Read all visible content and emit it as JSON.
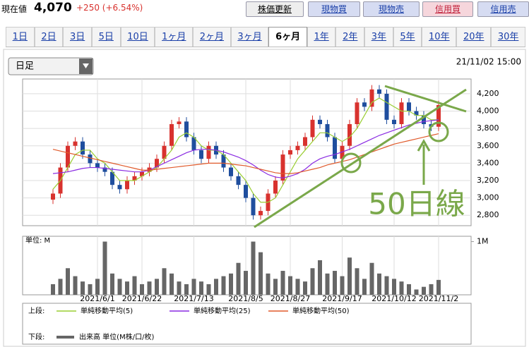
{
  "header": {
    "label": "現在値",
    "price": "4,070",
    "change": "+250 (+6.54%)",
    "buttons": [
      "株価更新",
      "現物買",
      "現物売",
      "信用買",
      "信用売"
    ]
  },
  "tabs": {
    "items": [
      "1日",
      "2日",
      "3日",
      "5日",
      "10日",
      "1ヶ月",
      "2ヶ月",
      "3ヶ月",
      "6ヶ月",
      "1年",
      "2年",
      "3年",
      "5年",
      "10年",
      "20年",
      "30年"
    ],
    "selected": "6ヶ月"
  },
  "chart_data": {
    "type": "candlestick",
    "period": "日足",
    "date": "21/11/02 15:00",
    "annotation": "50日線",
    "categories": [
      null,
      null,
      null,
      null,
      null,
      null,
      "2021/6/1",
      null,
      null,
      null,
      null,
      null,
      "2021/6/22",
      null,
      null,
      null,
      null,
      null,
      null,
      "2021/7/13",
      null,
      null,
      null,
      null,
      null,
      null,
      "2021/8/5",
      null,
      null,
      null,
      null,
      null,
      "2021/8/27",
      null,
      null,
      null,
      null,
      null,
      null,
      "2021/9/17",
      null,
      null,
      null,
      null,
      null,
      null,
      "2021/10/12",
      null,
      null,
      null,
      null,
      null,
      "2021/11/2"
    ],
    "open": [
      2980,
      3050,
      3350,
      3600,
      3650,
      3500,
      3400,
      3350,
      3300,
      3150,
      3100,
      3200,
      3250,
      3300,
      3350,
      3450,
      3600,
      3850,
      3880,
      3700,
      3550,
      3450,
      3600,
      3500,
      3350,
      3250,
      3150,
      3000,
      2800,
      2850,
      3050,
      3200,
      3500,
      3550,
      3600,
      3700,
      3900,
      3850,
      3700,
      3450,
      3600,
      3850,
      4100,
      4050,
      4250,
      4200,
      3900,
      3850,
      4100,
      4000,
      3950,
      3850,
      3820
    ],
    "high": [
      3100,
      3400,
      3650,
      3700,
      3700,
      3550,
      3450,
      3400,
      3350,
      3200,
      3250,
      3300,
      3350,
      3400,
      3500,
      3650,
      3900,
      3930,
      3930,
      3750,
      3600,
      3650,
      3650,
      3550,
      3400,
      3300,
      3200,
      3050,
      2900,
      3100,
      3250,
      3550,
      3600,
      3650,
      3750,
      3950,
      3950,
      3900,
      3750,
      3650,
      3900,
      4150,
      4150,
      4300,
      4300,
      4250,
      3950,
      4150,
      4150,
      4050,
      4000,
      3900,
      4120
    ],
    "low": [
      2930,
      3000,
      3300,
      3550,
      3450,
      3350,
      3300,
      3250,
      3100,
      3050,
      3050,
      3150,
      3200,
      3250,
      3300,
      3400,
      3550,
      3800,
      3650,
      3500,
      3400,
      3400,
      3450,
      3300,
      3200,
      3100,
      2950,
      2750,
      2750,
      2800,
      3000,
      3150,
      3450,
      3500,
      3550,
      3650,
      3800,
      3650,
      3400,
      3400,
      3550,
      3800,
      4000,
      4000,
      4150,
      3850,
      3800,
      3800,
      3950,
      3900,
      3800,
      3770,
      3770
    ],
    "close": [
      3050,
      3350,
      3600,
      3650,
      3500,
      3400,
      3350,
      3300,
      3150,
      3100,
      3200,
      3250,
      3300,
      3350,
      3450,
      3600,
      3850,
      3880,
      3700,
      3550,
      3450,
      3600,
      3500,
      3350,
      3250,
      3150,
      3000,
      2800,
      2850,
      3050,
      3200,
      3500,
      3550,
      3600,
      3700,
      3900,
      3850,
      3700,
      3450,
      3600,
      3850,
      4100,
      4050,
      4250,
      4200,
      3900,
      3850,
      4100,
      4000,
      3950,
      3850,
      3820,
      4070
    ],
    "up_color": "#d8322e",
    "down_color": "#1f4e9e",
    "ylim": [
      2680,
      4370
    ],
    "yticks": [
      {
        "value": 4200,
        "label": "4,200"
      },
      {
        "value": 4000,
        "label": "4,000"
      },
      {
        "value": 3800,
        "label": "3,800"
      },
      {
        "value": 3600,
        "label": "3,600"
      },
      {
        "value": 3400,
        "label": "3,400"
      },
      {
        "value": 3200,
        "label": "3,200"
      },
      {
        "value": 3000,
        "label": "3,000"
      },
      {
        "value": 2800,
        "label": "2,800"
      }
    ],
    "grid": true,
    "legend_labels": {
      "upper": "上段:",
      "lower": "下段:"
    },
    "series": [
      {
        "name": "単純移動平均(5)",
        "color": "#9acd32",
        "values": [
          3100,
          3200,
          3350,
          3500,
          3550,
          3550,
          3450,
          3400,
          3300,
          3200,
          3200,
          3200,
          3250,
          3300,
          3350,
          3450,
          3550,
          3700,
          3750,
          3700,
          3600,
          3550,
          3550,
          3500,
          3400,
          3300,
          3200,
          3050,
          2950,
          2950,
          3000,
          3150,
          3300,
          3450,
          3550,
          3650,
          3750,
          3750,
          3700,
          3650,
          3700,
          3800,
          3950,
          4100,
          4150,
          4100,
          4050,
          4000,
          4000,
          3950,
          3950,
          3900,
          3900
        ]
      },
      {
        "name": "単純移動平均(25)",
        "color": "#8a2be2",
        "values": [
          3280,
          3290,
          3300,
          3320,
          3340,
          3350,
          3350,
          3340,
          3330,
          3320,
          3310,
          3300,
          3300,
          3320,
          3360,
          3400,
          3440,
          3480,
          3520,
          3550,
          3560,
          3560,
          3550,
          3530,
          3500,
          3470,
          3430,
          3380,
          3320,
          3270,
          3240,
          3230,
          3250,
          3280,
          3330,
          3400,
          3450,
          3480,
          3500,
          3530,
          3560,
          3600,
          3640,
          3680,
          3720,
          3750,
          3780,
          3810,
          3840,
          3860,
          3880,
          3890,
          3900
        ]
      },
      {
        "name": "単純移動平均(50)",
        "color": "#e05a2b",
        "values": [
          3560,
          3540,
          3520,
          3500,
          3480,
          3460,
          3440,
          3420,
          3400,
          3380,
          3360,
          3340,
          3320,
          3320,
          3330,
          3340,
          3350,
          3360,
          3370,
          3380,
          3390,
          3400,
          3400,
          3400,
          3390,
          3380,
          3370,
          3350,
          3330,
          3310,
          3290,
          3280,
          3280,
          3290,
          3310,
          3330,
          3350,
          3380,
          3400,
          3420,
          3440,
          3470,
          3500,
          3530,
          3560,
          3590,
          3620,
          3640,
          3660,
          3680,
          3700,
          3720,
          3740
        ]
      }
    ],
    "volume": {
      "name": "出来高 単位(M株/口/枚)",
      "unit_label": "単位: M",
      "color": "#666666",
      "ylim": [
        0,
        1100000
      ],
      "yticks": [
        {
          "value": 1000000,
          "label": "1M"
        }
      ],
      "values": [
        200000,
        300000,
        500000,
        350000,
        250000,
        200000,
        300000,
        1000000,
        400000,
        300000,
        250000,
        350000,
        200000,
        250000,
        300000,
        500000,
        400000,
        250000,
        200000,
        300000,
        250000,
        200000,
        300000,
        350000,
        400000,
        600000,
        450000,
        1000000,
        800000,
        400000,
        300000,
        450000,
        350000,
        300000,
        250000,
        500000,
        650000,
        400000,
        450000,
        350000,
        700000,
        500000,
        300000,
        600000,
        400000,
        350000,
        300000,
        250000,
        200000,
        100000,
        150000,
        200000,
        280000
      ]
    }
  }
}
